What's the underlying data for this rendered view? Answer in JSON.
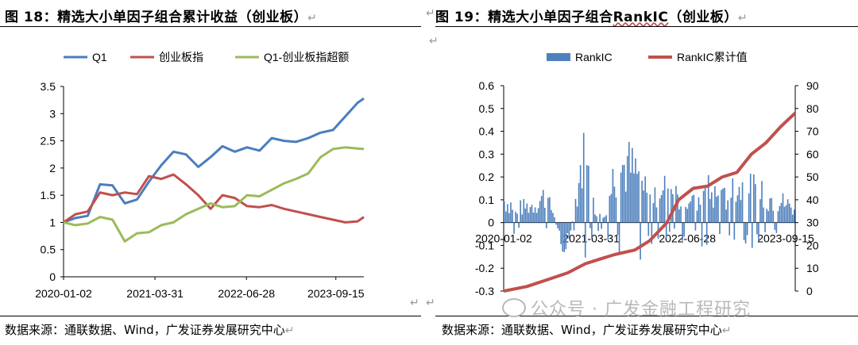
{
  "left": {
    "title": "图 18：精选大小单因子组合累计收益（创业板）",
    "source": "数据来源：通联数据、Wind，广发证券发展研究中心"
  },
  "right": {
    "title_prefix": "图 19：精选大小单因子组合",
    "title_suffix": "（创业板）",
    "source": "数据来源：通联数据、Wind，广发证券发展研究中心"
  },
  "watermark": "公众号 · 广发金融工程研究",
  "return_mark": "↵",
  "colors": {
    "q1": "#4a7dbf",
    "board": "#c0504d",
    "excess": "#9bbb59",
    "bar": "#4f81bd",
    "cum": "#c0504d"
  },
  "chart_data": [
    {
      "type": "line",
      "x": [
        "2020-01-02",
        "2020-03-01",
        "2020-05-01",
        "2020-07-01",
        "2020-09-01",
        "2020-11-01",
        "2021-01-01",
        "2021-03-01",
        "2021-05-01",
        "2021-07-01",
        "2021-09-01",
        "2021-11-01",
        "2022-01-01",
        "2022-03-01",
        "2022-05-01",
        "2022-07-01",
        "2022-09-01",
        "2022-11-01",
        "2023-01-01",
        "2023-03-01",
        "2023-05-01",
        "2023-07-01",
        "2023-09-01",
        "2023-11-01",
        "2024-01-01",
        "2024-02-01"
      ],
      "x_ticks": [
        "2020-01-02",
        "2021-03-31",
        "2022-06-28",
        "2023-09-15"
      ],
      "ylim": [
        0,
        3.5
      ],
      "y_ticks": [
        "0",
        "0.5",
        "1",
        "1.5",
        "2",
        "2.5",
        "3",
        "3.5"
      ],
      "series": [
        {
          "name": "Q1",
          "values": [
            1.0,
            1.08,
            1.12,
            1.7,
            1.68,
            1.35,
            1.42,
            1.75,
            2.05,
            2.3,
            2.25,
            2.02,
            2.2,
            2.4,
            2.3,
            2.38,
            2.32,
            2.55,
            2.5,
            2.48,
            2.55,
            2.65,
            2.7,
            2.95,
            3.2,
            3.28
          ]
        },
        {
          "name": "创业板指",
          "values": [
            1.0,
            1.15,
            1.2,
            1.55,
            1.5,
            1.55,
            1.52,
            1.85,
            1.8,
            1.88,
            1.7,
            1.5,
            1.25,
            1.5,
            1.45,
            1.3,
            1.28,
            1.32,
            1.25,
            1.2,
            1.15,
            1.1,
            1.05,
            1.0,
            1.02,
            1.1
          ]
        },
        {
          "name": "Q1-创业板指超额",
          "values": [
            1.0,
            0.95,
            0.98,
            1.1,
            1.05,
            0.65,
            0.8,
            0.82,
            0.95,
            1.0,
            1.15,
            1.25,
            1.35,
            1.28,
            1.3,
            1.5,
            1.48,
            1.6,
            1.72,
            1.8,
            1.9,
            2.2,
            2.35,
            2.38,
            2.36,
            2.35
          ]
        }
      ]
    },
    {
      "type": "bar",
      "x_ticks": [
        "2020-01-02",
        "2021-03-31",
        "2022-06-28",
        "2023-09-15"
      ],
      "ylim_left": [
        -0.3,
        0.6
      ],
      "y_ticks_left": [
        "-0.3",
        "-0.2",
        "-0.1",
        "0",
        "0.1",
        "0.2",
        "0.3",
        "0.4",
        "0.5",
        "0.6"
      ],
      "ylim_right": [
        0,
        90
      ],
      "y_ticks_right": [
        "0",
        "10",
        "20",
        "30",
        "40",
        "50",
        "60",
        "70",
        "80",
        "90"
      ],
      "series": [
        {
          "name": "RankIC",
          "axis": "left",
          "envelope_x": [
            0,
            0.05,
            0.1,
            0.15,
            0.19,
            0.22,
            0.27,
            0.31,
            0.35,
            0.38,
            0.42,
            0.46,
            0.5,
            0.55,
            0.6,
            0.65,
            0.7,
            0.75,
            0.8,
            0.85,
            0.9,
            0.95,
            1.0
          ],
          "envelope_y": [
            0.15,
            0.1,
            0.12,
            0.2,
            -0.1,
            -0.18,
            0.46,
            0.1,
            0.08,
            0.35,
            0.4,
            0.32,
            0.2,
            0.3,
            0.18,
            0.12,
            0.22,
            0.15,
            0.25,
            0.22,
            0.18,
            0.15,
            0.1
          ]
        },
        {
          "name": "RankIC累计值",
          "axis": "right",
          "x_frac": [
            0,
            0.08,
            0.15,
            0.22,
            0.28,
            0.33,
            0.38,
            0.45,
            0.5,
            0.56,
            0.6,
            0.65,
            0.7,
            0.75,
            0.8,
            0.85,
            0.9,
            0.95,
            1.0
          ],
          "values": [
            0,
            2,
            5,
            8,
            12,
            14,
            16,
            18,
            22,
            30,
            40,
            45,
            46,
            50,
            52,
            60,
            65,
            72,
            78
          ]
        }
      ]
    }
  ]
}
